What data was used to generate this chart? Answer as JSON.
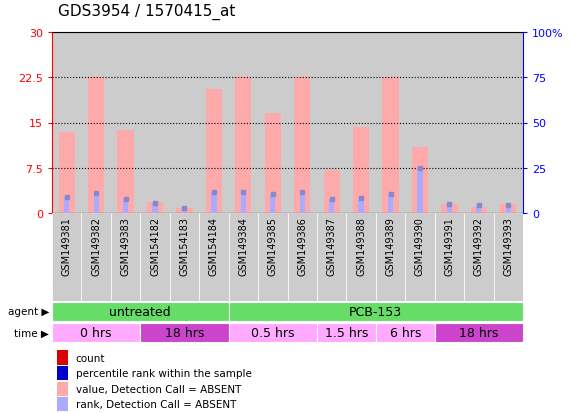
{
  "title": "GDS3954 / 1570415_at",
  "samples": [
    "GSM149381",
    "GSM149382",
    "GSM149383",
    "GSM154182",
    "GSM154183",
    "GSM154184",
    "GSM149384",
    "GSM149385",
    "GSM149386",
    "GSM149387",
    "GSM149388",
    "GSM149389",
    "GSM149390",
    "GSM149391",
    "GSM149392",
    "GSM149393"
  ],
  "count_values": [
    13.5,
    22.5,
    13.8,
    1.8,
    0.9,
    20.5,
    22.5,
    16.5,
    22.5,
    7.2,
    14.2,
    22.5,
    11.0,
    1.5,
    1.0,
    1.5
  ],
  "rank_values": [
    9.0,
    11.0,
    8.0,
    5.5,
    3.0,
    11.5,
    11.5,
    10.5,
    11.5,
    7.5,
    8.5,
    10.5,
    25.0,
    5.0,
    4.5,
    4.5
  ],
  "agent_groups": [
    {
      "label": "untreated",
      "start": 0,
      "end": 6,
      "color": "#66dd66"
    },
    {
      "label": "PCB-153",
      "start": 6,
      "end": 16,
      "color": "#66dd66"
    }
  ],
  "time_groups": [
    {
      "label": "0 hrs",
      "start": 0,
      "end": 3,
      "color": "#ffaaff"
    },
    {
      "label": "18 hrs",
      "start": 3,
      "end": 6,
      "color": "#cc44cc"
    },
    {
      "label": "0.5 hrs",
      "start": 6,
      "end": 9,
      "color": "#ffaaff"
    },
    {
      "label": "1.5 hrs",
      "start": 9,
      "end": 11,
      "color": "#ffaaff"
    },
    {
      "label": "6 hrs",
      "start": 11,
      "end": 13,
      "color": "#ffaaff"
    },
    {
      "label": "18 hrs",
      "start": 13,
      "end": 16,
      "color": "#cc44cc"
    }
  ],
  "ylim_left": [
    0,
    30
  ],
  "ylim_right": [
    0,
    100
  ],
  "yticks_left": [
    0,
    7.5,
    15,
    22.5,
    30
  ],
  "yticks_right": [
    0,
    25,
    50,
    75,
    100
  ],
  "ytick_labels_left": [
    "0",
    "7.5",
    "15",
    "22.5",
    "30"
  ],
  "ytick_labels_right": [
    "0",
    "25",
    "50",
    "75",
    "100%"
  ],
  "count_bar_color_absent": "#ffaaaa",
  "rank_bar_color_absent": "#aaaaff",
  "sample_col_color": "#cccccc",
  "legend_items": [
    {
      "label": "count",
      "color": "#dd0000"
    },
    {
      "label": "percentile rank within the sample",
      "color": "#0000cc"
    },
    {
      "label": "value, Detection Call = ABSENT",
      "color": "#ffaaaa"
    },
    {
      "label": "rank, Detection Call = ABSENT",
      "color": "#aaaaff"
    }
  ],
  "agent_label_fontsize": 9,
  "time_label_fontsize": 9,
  "sample_fontsize": 7,
  "title_fontsize": 11
}
